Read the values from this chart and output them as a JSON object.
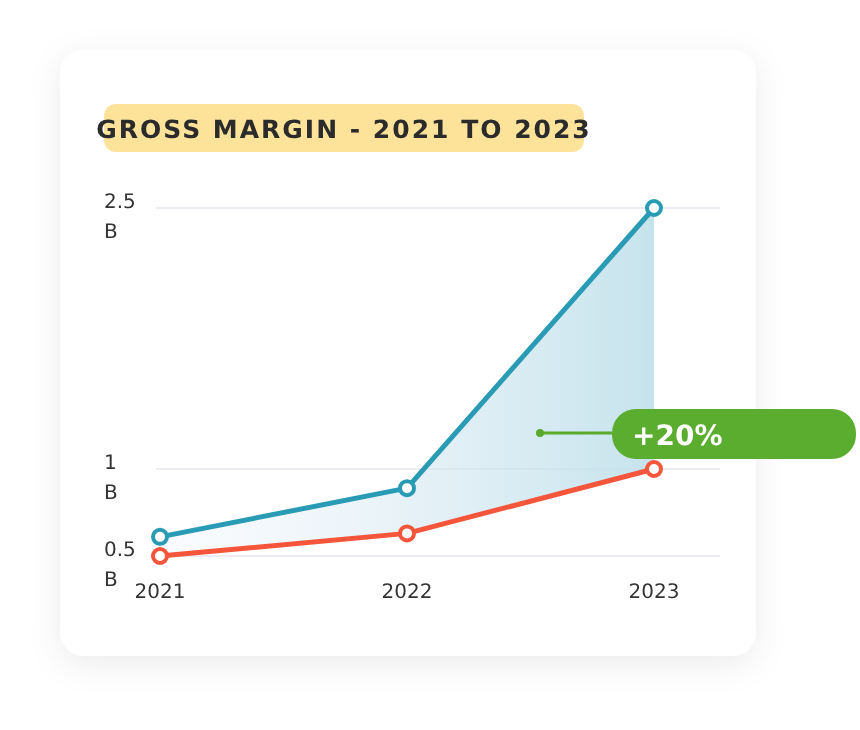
{
  "chart_data": {
    "type": "line",
    "title": "GROSS MARGIN - 2021 TO 2023",
    "categories": [
      "2021",
      "2022",
      "2023"
    ],
    "series": [
      {
        "name": null,
        "color": "#2a9bb5",
        "values": [
          0.61,
          0.89,
          2.5
        ],
        "lower": [
          0.5,
          0.63,
          1.0
        ],
        "upper": [
          0.61,
          0.89,
          2.5
        ]
      },
      {
        "name": null,
        "color": "#f4553b",
        "values": [
          0.5,
          0.63,
          1.0
        ]
      }
    ],
    "ylim": [
      0.5,
      2.5
    ],
    "yticks": [
      {
        "value": 0.5,
        "label": "0.5 B"
      },
      {
        "value": 1,
        "label": "1 B"
      },
      {
        "value": 2.5,
        "label": "2.5 B"
      }
    ],
    "grid": "y",
    "marker": "circle",
    "line_style": "solid",
    "annotations": [
      {
        "text": "+20%",
        "x": "2023",
        "y": 1.0
      }
    ]
  }
}
